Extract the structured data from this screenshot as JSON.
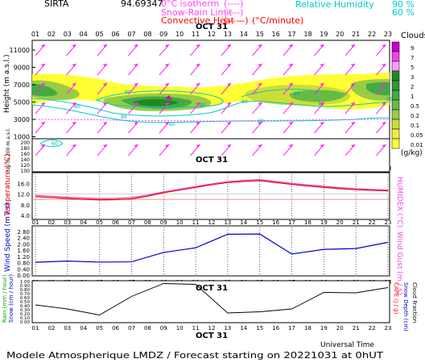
{
  "header": {
    "station": "SIRTA",
    "coords": "94.69347",
    "legend_isotherm": "0°C isotherm",
    "legend_snow_rain": "Snow-Rain Limit",
    "legend_convective": "Convective Heat",
    "legend_convective_unit": "(°C/minute)",
    "legend_isotherm_key": "(----)",
    "legend_snow_key": "(----)",
    "legend_conv_key": "(——)",
    "legend_rh": "Relative Humidity",
    "legend_rh_90": "90 %",
    "legend_rh_60": "60 %"
  },
  "axes": {
    "hours": [
      "01",
      "02",
      "03",
      "04",
      "05",
      "06",
      "07",
      "08",
      "09",
      "10",
      "11",
      "12",
      "13",
      "14",
      "15",
      "16",
      "17",
      "18",
      "19",
      "20",
      "21",
      "22",
      "23"
    ],
    "date_label": "OCT 31",
    "universal_time": "Universal Time",
    "footer": "Modele Atmospherique LMDZ / Forecast starting on 20221031 at 0hUT"
  },
  "panel1": {
    "ylabel": "Height (m a.s.l.)",
    "ylabel_low": "Up to 200 m a.s.l.",
    "yticks_upper": [
      "11000",
      "9000",
      "7000",
      "5000",
      "3000",
      "1000"
    ],
    "yticks_lower": [
      "200",
      "180",
      "160",
      "140",
      "120",
      "100"
    ],
    "colorbar_title": "Clouds",
    "colorbar_ticks": [
      "9",
      "7",
      "5",
      "3",
      "2",
      "1",
      "0.5",
      "0.2",
      "0.1",
      "0.05",
      "0.01"
    ],
    "colorbar_unit": "(g/kg)",
    "colorbar_colors": [
      "#cc00cc",
      "#ee44ee",
      "#ff99ff",
      "#228822",
      "#339933",
      "#44aa44",
      "#66bb44",
      "#99cc44",
      "#ccdd33",
      "#eeee44",
      "#ffff33"
    ],
    "contour_labels": [
      "80",
      "60",
      "80",
      "60",
      "80",
      "60",
      "60",
      "80",
      "60",
      "60",
      "60"
    ]
  },
  "panel2": {
    "ylabel": "Temperature (°C)",
    "ylabel_right": "HUMIDEX (°C)",
    "yticks": [
      "16.0",
      "12.0",
      "8.0",
      "4.0"
    ],
    "date_label": "OCT 31"
  },
  "panel3": {
    "ylabel": "Wind Speed (m / s)",
    "ylabel_right": "Wind Gust (m / s)",
    "yticks": [
      "2.80",
      "2.40",
      "2.00",
      "1.60",
      "1.20",
      "0.80",
      "0.40",
      "0.00"
    ]
  },
  "panel4": {
    "ylabel_left1": "Rain (mm / hour)",
    "ylabel_left2": "Snow (cm / hour)",
    "ylabel_right1": "CAPE (J / g)",
    "ylabel_right2": "Snow Depth (cm)",
    "ylabel_right3": "Cloud Fraction",
    "yticks": [
      "1.00",
      "0.90",
      "0.80",
      "0.70",
      "0.60",
      "0.50",
      "0.40",
      "0.30",
      "0.20",
      "0.10",
      "0.00"
    ],
    "date_label": "OCT 31"
  },
  "chart_data": [
    {
      "type": "line",
      "title": "Temperature",
      "ylabel": "Temperature (°C)",
      "ylim": [
        2.5,
        20
      ],
      "x": [
        "01",
        "02",
        "03",
        "04",
        "05",
        "06",
        "07",
        "08",
        "09",
        "10",
        "11",
        "12",
        "13",
        "14",
        "15",
        "16",
        "17",
        "18",
        "19",
        "20",
        "21",
        "22",
        "23"
      ],
      "series": [
        {
          "name": "Temperature",
          "color": "#dd0000",
          "values": [
            11.0,
            10.7,
            10.3,
            10.0,
            9.8,
            9.9,
            10.2,
            11.2,
            12.5,
            13.5,
            14.5,
            15.5,
            16.3,
            16.7,
            17.0,
            16.3,
            15.6,
            15.0,
            14.5,
            14.0,
            13.6,
            13.4,
            13.2
          ]
        },
        {
          "name": "HUMIDEX",
          "color": "#ee44aa",
          "values": [
            11.5,
            11.2,
            10.8,
            10.5,
            10.3,
            10.4,
            10.7,
            11.6,
            12.8,
            13.8,
            14.8,
            15.8,
            16.6,
            17.1,
            17.4,
            16.7,
            16.0,
            15.4,
            14.9,
            14.4,
            14.0,
            13.7,
            13.5
          ]
        }
      ]
    },
    {
      "type": "line",
      "title": "Wind",
      "ylabel": "Wind Speed (m / s)",
      "ylim": [
        0,
        3.0
      ],
      "x": [
        "01",
        "03",
        "05",
        "07",
        "09",
        "11",
        "13",
        "15",
        "17",
        "19",
        "21",
        "23"
      ],
      "series": [
        {
          "name": "Wind Speed",
          "color": "#0000cc",
          "values": [
            0.82,
            0.9,
            0.83,
            0.85,
            1.45,
            1.75,
            2.62,
            2.63,
            1.35,
            1.65,
            1.7,
            2.1
          ]
        }
      ]
    },
    {
      "type": "line",
      "title": "Cloud Fraction",
      "ylabel": "Cloud Fraction",
      "ylim": [
        0,
        1.0
      ],
      "x": [
        "01",
        "03",
        "05",
        "07",
        "09",
        "11",
        "13",
        "15",
        "17",
        "19",
        "21",
        "23"
      ],
      "series": [
        {
          "name": "Cloud Fraction",
          "color": "#000000",
          "values": [
            0.42,
            0.32,
            0.17,
            0.63,
            0.95,
            0.93,
            0.22,
            0.25,
            0.32,
            0.73,
            0.72,
            0.85
          ]
        }
      ]
    }
  ]
}
